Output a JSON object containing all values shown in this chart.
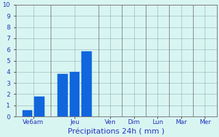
{
  "bar_positions": [
    1,
    2,
    4,
    5,
    6,
    8,
    10,
    12,
    14,
    16
  ],
  "bar_values": [
    0.55,
    1.8,
    3.8,
    4.0,
    5.8,
    0,
    0,
    0,
    0,
    0
  ],
  "bar_color": "#1166dd",
  "background_color": "#d8f5f2",
  "grid_color": "#99bbbb",
  "xlabel": "Précipitations 24h ( mm )",
  "ylim": [
    0,
    10
  ],
  "yticks": [
    0,
    1,
    2,
    3,
    4,
    5,
    6,
    7,
    8,
    9,
    10
  ],
  "xtick_labels": [
    "Ve6am",
    "Jeu",
    "Ven",
    "Dim",
    "Lun",
    "Mar",
    "Mer"
  ],
  "xtick_positions": [
    1.5,
    5.0,
    8,
    10,
    12,
    14,
    16
  ],
  "separator_x": [
    3,
    7,
    9,
    11,
    13,
    15
  ],
  "xlim": [
    0,
    17
  ],
  "bar_width": 0.85,
  "tick_fontsize": 6.5,
  "xlabel_fontsize": 8,
  "tick_color": "#2233bb",
  "spine_color": "#777777"
}
